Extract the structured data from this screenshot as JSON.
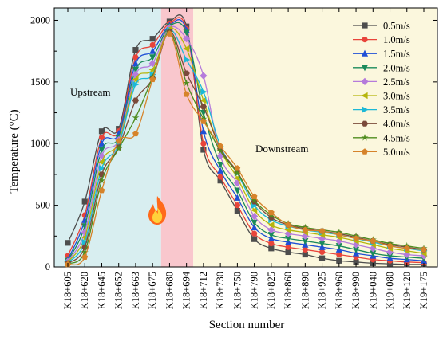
{
  "chart_data": {
    "type": "line",
    "xlabel": "Section number",
    "ylabel": "Temperature (°C)",
    "ylim": [
      0,
      2100
    ],
    "yticks": [
      0,
      500,
      1000,
      1500,
      2000
    ],
    "grid": false,
    "legend_position": "top-right",
    "categories": [
      "K18+605",
      "K18+620",
      "K18+645",
      "K18+652",
      "K18+663",
      "K18+675",
      "K18+680",
      "K18+694",
      "K18+712",
      "K18+730",
      "K18+750",
      "K18+790",
      "K18+825",
      "K18+860",
      "K18+890",
      "K18+925",
      "K18+960",
      "K18+990",
      "K19+040",
      "K19+080",
      "K19+120",
      "K19+175"
    ],
    "regions": [
      {
        "label": "Upstream",
        "from": 0,
        "to": 5.5,
        "color": "#d8eef0"
      },
      {
        "label": "",
        "from": 5.5,
        "to": 7.4,
        "color": "#f9c7cd"
      },
      {
        "label": "Downstream",
        "from": 7.4,
        "to": 21.5,
        "color": "#fbf7dd"
      }
    ],
    "fire_icon": "fire-icon",
    "series": [
      {
        "name": "0.5m/s",
        "color": "#4d4d4d",
        "marker": "square",
        "values": [
          195,
          530,
          1100,
          1120,
          1760,
          1850,
          1990,
          1950,
          950,
          700,
          455,
          225,
          150,
          120,
          100,
          70,
          50,
          40,
          30,
          25,
          20,
          20
        ]
      },
      {
        "name": "1.0m/s",
        "color": "#e8443a",
        "marker": "circle",
        "values": [
          90,
          420,
          1050,
          1100,
          1700,
          1800,
          1975,
          1930,
          1000,
          730,
          500,
          270,
          190,
          160,
          140,
          120,
          100,
          80,
          60,
          50,
          40,
          35
        ]
      },
      {
        "name": "1.5m/s",
        "color": "#1f4fd6",
        "marker": "triangle-up",
        "values": [
          60,
          380,
          1000,
          1080,
          1650,
          1750,
          1960,
          1920,
          1100,
          780,
          560,
          320,
          230,
          200,
          180,
          160,
          140,
          110,
          90,
          70,
          60,
          50
        ]
      },
      {
        "name": "2.0m/s",
        "color": "#1a8a5a",
        "marker": "triangle-down",
        "values": [
          50,
          330,
          950,
          1050,
          1600,
          1700,
          1950,
          1900,
          1250,
          830,
          620,
          360,
          260,
          230,
          210,
          190,
          170,
          140,
          110,
          90,
          80,
          70
        ]
      },
      {
        "name": "2.5m/s",
        "color": "#b57bdb",
        "marker": "diamond",
        "values": [
          45,
          280,
          900,
          1030,
          1560,
          1650,
          1940,
          1850,
          1550,
          900,
          680,
          410,
          300,
          270,
          250,
          230,
          210,
          180,
          150,
          120,
          100,
          90
        ]
      },
      {
        "name": "3.0m/s",
        "color": "#b5b50c",
        "marker": "triangle-left",
        "values": [
          40,
          240,
          850,
          1010,
          1520,
          1600,
          1930,
          1770,
          1350,
          950,
          720,
          460,
          340,
          300,
          280,
          260,
          240,
          210,
          180,
          150,
          130,
          110
        ]
      },
      {
        "name": "3.5m/s",
        "color": "#1cb8d6",
        "marker": "triangle-right",
        "values": [
          35,
          200,
          800,
          990,
          1480,
          1560,
          1920,
          1680,
          1420,
          980,
          760,
          500,
          380,
          330,
          300,
          280,
          260,
          230,
          200,
          170,
          150,
          130
        ]
      },
      {
        "name": "4.0m/s",
        "color": "#7a4a3a",
        "marker": "hexagon",
        "values": [
          30,
          160,
          750,
          970,
          1350,
          1530,
          1910,
          1570,
          1300,
          960,
          770,
          530,
          400,
          340,
          310,
          290,
          270,
          240,
          210,
          180,
          160,
          140
        ]
      },
      {
        "name": "4.5m/s",
        "color": "#4e8c1e",
        "marker": "star",
        "values": [
          25,
          120,
          700,
          960,
          1210,
          1540,
          1900,
          1490,
          1200,
          940,
          760,
          540,
          420,
          350,
          320,
          300,
          280,
          250,
          220,
          190,
          170,
          150
        ]
      },
      {
        "name": "5.0m/s",
        "color": "#d6832a",
        "marker": "pentagon",
        "values": [
          20,
          80,
          620,
          1020,
          1080,
          1520,
          1890,
          1400,
          1180,
          980,
          800,
          570,
          440,
          340,
          300,
          290,
          260,
          230,
          210,
          170,
          150,
          140
        ]
      }
    ]
  }
}
